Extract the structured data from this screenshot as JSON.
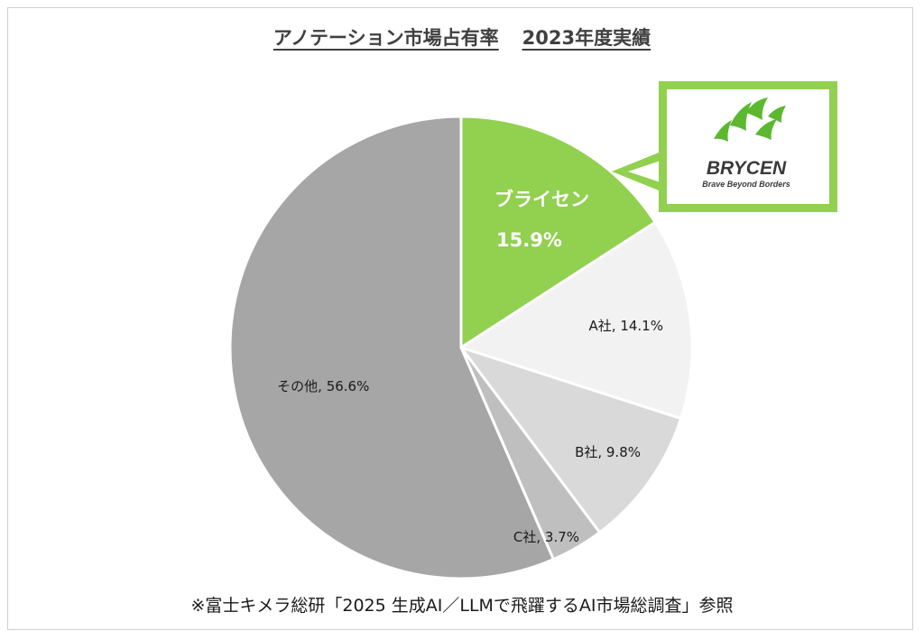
{
  "title": {
    "main": "アノテーション市場占有率",
    "sub": "2023年度実績"
  },
  "chart_data": {
    "type": "pie",
    "title": "アノテーション市場占有率　2023年度実績",
    "unit": "%",
    "slices": [
      {
        "label": "ブライセン",
        "value": 15.9,
        "display": "15.9%",
        "color": "#92d050",
        "highlight": true
      },
      {
        "label": "A社",
        "value": 14.1,
        "display": "14.1%",
        "color": "#f2f2f2"
      },
      {
        "label": "B社",
        "value": 9.8,
        "display": "9.8%",
        "color": "#d9d9d9"
      },
      {
        "label": "C社",
        "value": 3.7,
        "display": "3.7%",
        "color": "#bfbfbf"
      },
      {
        "label": "その他",
        "value": 56.6,
        "display": "56.6%",
        "color": "#a6a6a6"
      }
    ],
    "start_angle": "12 o'clock",
    "direction": "clockwise"
  },
  "callout": {
    "logo_text": "BRYCEN",
    "logo_tagline": "Brave Beyond Borders",
    "border_color": "#92d050",
    "logo_color": "#3a3a3a"
  },
  "source_note": "※富士キメラ総研「2025 生成AI／LLMで飛躍するAI市場総調査」参照"
}
